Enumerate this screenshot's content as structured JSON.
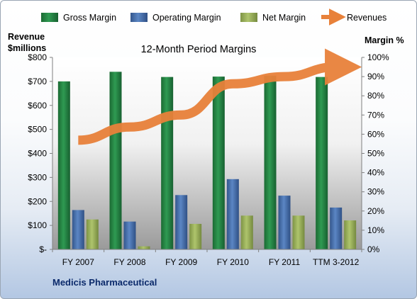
{
  "chart_data": {
    "type": "bar",
    "title": "12-Month Period Margins",
    "company": "Medicis Pharmaceutical",
    "categories": [
      "FY 2007",
      "FY 2008",
      "FY 2009",
      "FY 2010",
      "FY 2011",
      "TTM 3-2012"
    ],
    "series": [
      {
        "name": "Gross Margin",
        "type": "bar",
        "axis": "right",
        "color": "#1f7a3c",
        "values": [
          87.5,
          92.5,
          89.8,
          90.0,
          90.5,
          89.8
        ]
      },
      {
        "name": "Operating Margin",
        "type": "bar",
        "axis": "right",
        "color": "#3f68a6",
        "values": [
          20.5,
          14.5,
          28.3,
          36.6,
          28.0,
          21.8
        ]
      },
      {
        "name": "Net Margin",
        "type": "bar",
        "axis": "right",
        "color": "#93ab55",
        "values": [
          15.6,
          1.6,
          13.3,
          17.6,
          17.6,
          15.1
        ]
      },
      {
        "name": "Revenues",
        "type": "line",
        "axis": "left",
        "color": "#e8813a",
        "values": [
          455,
          510,
          560,
          690,
          720,
          760
        ]
      }
    ],
    "y_left": {
      "label_line1": "Revenue",
      "label_line2": "$millions",
      "min": 0,
      "max": 800,
      "step": 100,
      "tick_labels": [
        "$-",
        "$100",
        "$200",
        "$300",
        "$400",
        "$500",
        "$600",
        "$700",
        "$800"
      ]
    },
    "y_right": {
      "label": "Margin %",
      "min": 0,
      "max": 100,
      "step": 10,
      "tick_labels": [
        "0%",
        "10%",
        "20%",
        "30%",
        "40%",
        "50%",
        "60%",
        "70%",
        "80%",
        "90%",
        "100%"
      ]
    },
    "legend_position": "top",
    "grid": false
  }
}
